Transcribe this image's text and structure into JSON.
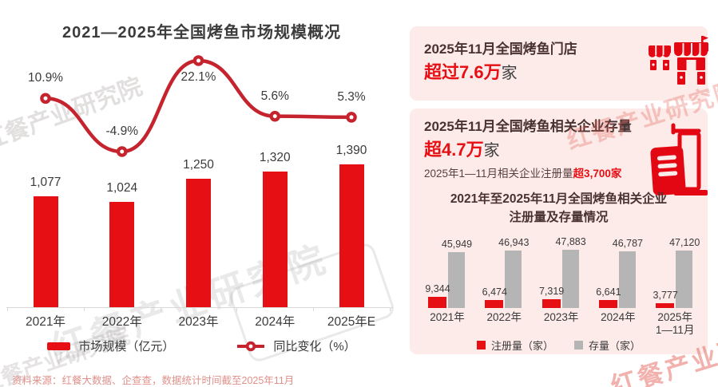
{
  "page": {
    "source_note": "资料来源：红餐大数据、企查查，数据统计时间截至2025年11月"
  },
  "watermark": {
    "text": "红餐产业研究院"
  },
  "colors": {
    "primary_red": "#e50f14",
    "line_red": "#c5242e",
    "bar_gray": "#b5b5b5",
    "card_pink": "#fcebe9",
    "dark_text": "#3a3a3a",
    "maroon_text": "#4a3232",
    "source_pink": "#e0908a"
  },
  "cards": {
    "stores": {
      "title": "2025年11月全国烤鱼门店",
      "highlight": "超过7.6万",
      "suffix": "家",
      "icon": "storefront-icon"
    },
    "enterprises": {
      "title": "2025年11月全国烤鱼相关企业存量",
      "highlight": "超4.7万",
      "suffix": "家",
      "note_prefix": "2025年1—11月相关企业注册量",
      "note_highlight": "超3,700家",
      "icon": "building-icon"
    }
  },
  "chart_data": [
    {
      "type": "bar+line",
      "title": "2021—2025年全国烤鱼市场规模概况",
      "categories": [
        "2021年",
        "2022年",
        "2023年",
        "2024年",
        "2025年E"
      ],
      "series": [
        {
          "name": "市场规模（亿元）",
          "type": "bar",
          "values": [
            1077,
            1024,
            1250,
            1320,
            1390
          ],
          "labels": [
            "1,077",
            "1,024",
            "1,250",
            "1,320",
            "1,390"
          ],
          "color": "#e50f14"
        },
        {
          "name": "同比变化（%）",
          "type": "line",
          "values": [
            10.9,
            -4.9,
            22.1,
            5.6,
            5.3
          ],
          "labels": [
            "10.9%",
            "-4.9%",
            "22.1%",
            "5.6%",
            "5.3%"
          ],
          "label_sides": [
            "above",
            "above",
            "below",
            "above",
            "above"
          ],
          "color": "#c5242e"
        }
      ],
      "xlabel": "",
      "ylabel": "",
      "grid": false,
      "legend_position": "bottom"
    },
    {
      "type": "bar",
      "title": "2021年至2025年11月全国烤鱼相关企业注册量及存量情况",
      "title_lines": [
        "2021年至2025年11月全国烤鱼相关企业",
        "注册量及存量情况"
      ],
      "categories": [
        "2021年",
        "2022年",
        "2023年",
        "2024年",
        "2025年\n1—11月"
      ],
      "series": [
        {
          "name": "注册量（家）",
          "values": [
            9344,
            6474,
            7319,
            6641,
            3777
          ],
          "labels": [
            "9,344",
            "6,474",
            "7,319",
            "6,641",
            "3,777"
          ],
          "color": "#e50f14"
        },
        {
          "name": "存量（家）",
          "values": [
            45949,
            46943,
            47883,
            46787,
            47120
          ],
          "labels": [
            "45,949",
            "46,943",
            "47,883",
            "46,787",
            "47,120"
          ],
          "color": "#b5b5b5"
        }
      ],
      "xlabel": "",
      "ylabel": "",
      "grid": false,
      "legend_position": "bottom"
    }
  ]
}
